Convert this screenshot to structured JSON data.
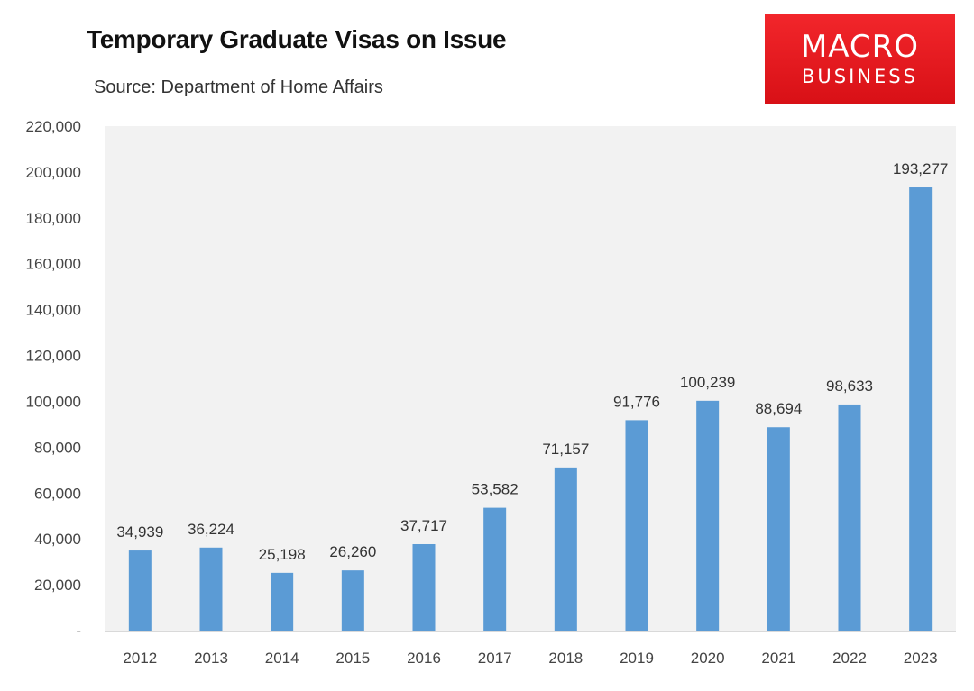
{
  "header": {
    "title": "Temporary Graduate Visas on Issue",
    "subtitle": "Source: Department of Home Affairs"
  },
  "logo": {
    "line1": "MACRO",
    "line2": "BUSINESS",
    "color": "#e01a1f"
  },
  "chart_data": {
    "type": "bar",
    "title": "Temporary Graduate Visas on Issue",
    "subtitle": "Source: Department of Home Affairs",
    "categories": [
      "2012",
      "2013",
      "2014",
      "2015",
      "2016",
      "2017",
      "2018",
      "2019",
      "2020",
      "2021",
      "2022",
      "2023"
    ],
    "values": [
      34939,
      36224,
      25198,
      26260,
      37717,
      53582,
      71157,
      91776,
      100239,
      88694,
      98633,
      193277
    ],
    "data_labels": [
      "34,939",
      "36,224",
      "25,198",
      "26,260",
      "37,717",
      "53,582",
      "71,157",
      "91,776",
      "100,239",
      "88,694",
      "98,633",
      "193,277"
    ],
    "y_tick_labels": [
      "-",
      "20,000",
      "40,000",
      "60,000",
      "80,000",
      "100,000",
      "120,000",
      "140,000",
      "160,000",
      "180,000",
      "200,000",
      "220,000"
    ],
    "ylim": [
      0,
      220000
    ],
    "xlabel": "",
    "ylabel": "",
    "grid": false,
    "legend": "none",
    "bar_color": "#5b9bd5",
    "plot_background": "#f2f2f2"
  }
}
